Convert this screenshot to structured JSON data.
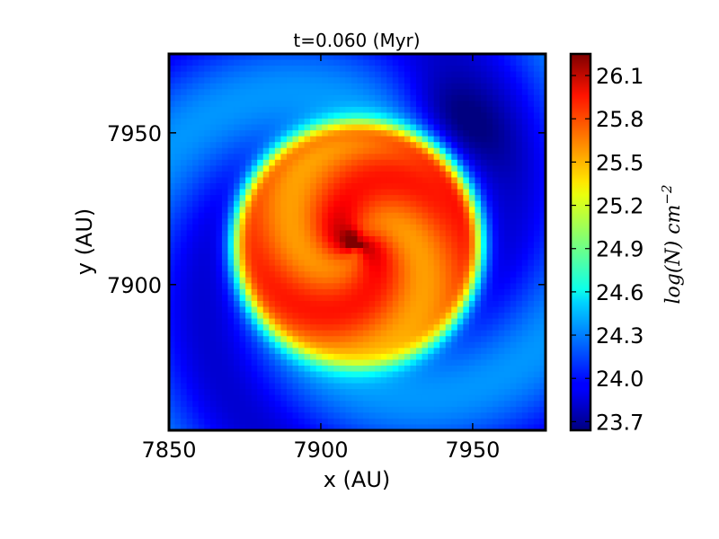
{
  "chart_data": {
    "type": "heatmap",
    "title": "t=0.060 (Myr)",
    "xlabel": "x (AU)",
    "ylabel": "y (AU)",
    "xlim": [
      7850,
      7974
    ],
    "ylim": [
      7852,
      7976
    ],
    "xticks": [
      7850,
      7900,
      7950
    ],
    "yticks": [
      7900,
      7950
    ],
    "xtick_labels": [
      "7850",
      "7900",
      "7950"
    ],
    "ytick_labels": [
      "7900",
      "7950"
    ],
    "colorbar": {
      "label": "log(N) cm",
      "label_exponent": "−2",
      "colormap": "jet",
      "range": [
        23.64,
        26.25
      ],
      "ticks": [
        23.7,
        24.0,
        24.3,
        24.6,
        24.9,
        25.2,
        25.5,
        25.8,
        26.1
      ],
      "tick_labels": [
        "23.7",
        "24.0",
        "24.3",
        "24.6",
        "24.9",
        "25.2",
        "25.5",
        "25.8",
        "26.1"
      ]
    },
    "field": {
      "description_of_values": "column density map, log(N) in cm^-2",
      "grid_resolution": 64,
      "core_center": [
        7911,
        7915
      ],
      "core_peak": 26.2,
      "disk_center": [
        7912,
        7913
      ],
      "disk_radius_au": 40,
      "disk_level": 25.7,
      "background_level": 24.0,
      "spiral_arm_level": 24.3,
      "gap_level": 23.7
    }
  }
}
